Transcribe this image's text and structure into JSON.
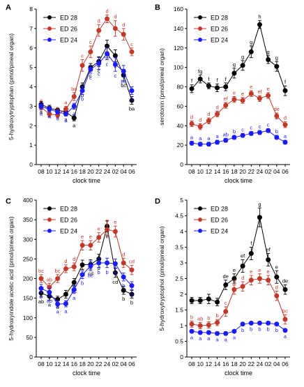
{
  "colors": {
    "ED 28": "#000000",
    "ED 26": "#c0392b",
    "ED 24": "#1a1aff",
    "axis": "#000000"
  },
  "chart_data": [
    {
      "panel": "A",
      "type": "line",
      "x": [
        "08",
        "10",
        "12",
        "14",
        "16",
        "18",
        "20",
        "22",
        "24",
        "02",
        "04",
        "06"
      ],
      "xlabel": "clock time",
      "ylabel": "5-hydroxytryptophan (pmol/pineal organ)",
      "ylim": [
        0,
        8
      ],
      "yticks": [
        0,
        1,
        2,
        3,
        4,
        5,
        6,
        7,
        8
      ],
      "legend_position": "top-left",
      "series": [
        {
          "name": "ED 28",
          "values": [
            3.1,
            2.9,
            2.8,
            2.7,
            2.4,
            4.0,
            5.0,
            5.3,
            6.1,
            5.6,
            4.6,
            3.3
          ],
          "errors": [
            0.15,
            0.15,
            0.1,
            0.15,
            0.15,
            0.2,
            0.2,
            0.25,
            0.3,
            0.3,
            0.3,
            0.2
          ],
          "labels": [
            "a",
            "a",
            "a",
            "a",
            "a",
            "b",
            "c",
            "c",
            "cd",
            "c",
            "bc",
            "ba"
          ],
          "label_pos": "below"
        },
        {
          "name": "ED 26",
          "values": [
            2.95,
            2.6,
            2.55,
            2.85,
            3.5,
            5.1,
            5.8,
            6.9,
            7.5,
            7.0,
            6.7,
            5.8
          ],
          "errors": [
            0.15,
            0.15,
            0.15,
            0.15,
            0.2,
            0.3,
            0.3,
            0.3,
            0.2,
            0.4,
            0.3,
            0.2
          ],
          "labels": [
            "a",
            "a",
            "a",
            "a",
            "ba",
            "c",
            "c",
            "d",
            "d",
            "d",
            "d",
            "c"
          ],
          "label_pos": "above"
        },
        {
          "name": "ED 24",
          "values": [
            3.0,
            2.85,
            2.7,
            2.6,
            3.0,
            3.8,
            4.9,
            5.2,
            5.7,
            5.15,
            4.8,
            3.8
          ],
          "errors": [
            0.15,
            0.15,
            0.1,
            0.1,
            0.15,
            0.2,
            0.2,
            0.3,
            0.3,
            0.35,
            0.3,
            0.2
          ],
          "labels": [
            "a",
            "a",
            "a",
            "a",
            "a",
            "b",
            "c",
            "c",
            "c",
            "c",
            "bc",
            "b"
          ],
          "label_pos": "below"
        }
      ]
    },
    {
      "panel": "B",
      "type": "line",
      "x": [
        "08",
        "10",
        "12",
        "14",
        "16",
        "18",
        "20",
        "22",
        "24",
        "02",
        "04",
        "06"
      ],
      "xlabel": "clock time",
      "ylabel": "serotonin (pmol/pineal organ)",
      "ylim": [
        0,
        160
      ],
      "yticks": [
        0,
        20,
        40,
        60,
        80,
        100,
        120,
        140,
        160
      ],
      "legend_position": "top-left",
      "series": [
        {
          "name": "ED 28",
          "values": [
            78,
            88,
            81,
            79,
            80,
            94,
            102,
            116,
            144,
            108,
            101,
            76
          ],
          "errors": [
            4,
            4,
            3,
            4,
            4,
            5,
            5,
            6,
            4,
            4,
            5,
            5
          ],
          "labels": [
            "f",
            "fg",
            "f",
            "f",
            "f",
            "g",
            "g",
            "g",
            "h",
            "g",
            "g",
            "f"
          ],
          "label_pos": "above"
        },
        {
          "name": "ED 26",
          "values": [
            42,
            39,
            45,
            52,
            61,
            67,
            66,
            73,
            68,
            71,
            50,
            41
          ],
          "errors": [
            3,
            3,
            3,
            3,
            3,
            3,
            3,
            3,
            3,
            3,
            3,
            3
          ],
          "labels": [
            "d",
            "d",
            "d",
            "d",
            "ef",
            "e",
            "e",
            "e",
            "ef",
            "e",
            "de",
            "d"
          ],
          "label_pos": "above"
        },
        {
          "name": "ED 24",
          "values": [
            22,
            21,
            21,
            23,
            25,
            28,
            30,
            32,
            33,
            35,
            28,
            23
          ],
          "errors": [
            2,
            2,
            2,
            2,
            2,
            2,
            2,
            2,
            2,
            2,
            2,
            2
          ],
          "labels": [
            "a",
            "a",
            "a",
            "a",
            "ab",
            "b",
            "c",
            "c",
            "c",
            "c",
            "b",
            "a"
          ],
          "label_pos": "above"
        }
      ]
    },
    {
      "panel": "C",
      "type": "line",
      "x": [
        "08",
        "10",
        "12",
        "14",
        "16",
        "18",
        "20",
        "22",
        "24",
        "02",
        "04",
        "06"
      ],
      "xlabel": "clock time",
      "ylabel": "5-hydroxyindole acetic acid (pmol/pineal organ)",
      "ylim": [
        0,
        400
      ],
      "yticks": [
        0,
        50,
        100,
        150,
        200,
        250,
        300,
        350,
        400
      ],
      "legend_position": "top-left",
      "series": [
        {
          "name": "ED 28",
          "values": [
            163,
            155,
            147,
            160,
            190,
            235,
            236,
            250,
            333,
            215,
            170,
            160
          ],
          "errors": [
            10,
            10,
            8,
            10,
            10,
            12,
            12,
            12,
            14,
            12,
            10,
            10
          ],
          "labels": [
            "ab",
            "a",
            "a",
            "a",
            "bc",
            "cd",
            "cd",
            "d",
            "e",
            "cd",
            "b",
            "b"
          ],
          "label_pos": "below"
        },
        {
          "name": "ED 26",
          "values": [
            200,
            178,
            200,
            225,
            230,
            285,
            285,
            305,
            325,
            320,
            240,
            222
          ],
          "errors": [
            10,
            10,
            10,
            10,
            10,
            12,
            12,
            12,
            14,
            14,
            12,
            12
          ],
          "labels": [
            "bc",
            "ab",
            "bc",
            "d",
            "d",
            "e",
            "e",
            "e",
            "e",
            "e",
            "d",
            "cd"
          ],
          "label_pos": "above"
        },
        {
          "name": "ED 24",
          "values": [
            175,
            165,
            135,
            136,
            172,
            210,
            232,
            240,
            240,
            238,
            204,
            182
          ],
          "errors": [
            10,
            10,
            8,
            8,
            10,
            10,
            12,
            12,
            12,
            12,
            10,
            10
          ],
          "labels": [
            "b",
            "ab",
            "a",
            "a",
            "a",
            "b",
            "bc",
            "b",
            "b",
            "b",
            "b",
            "b"
          ],
          "label_pos": "below"
        }
      ]
    },
    {
      "panel": "D",
      "type": "line",
      "x": [
        "08",
        "10",
        "12",
        "14",
        "16",
        "18",
        "20",
        "22",
        "24",
        "02",
        "04",
        "06"
      ],
      "xlabel": "clock time",
      "ylabel": "5-hydroxytryptophol (pmol/pineal organ)",
      "ylim": [
        0,
        5
      ],
      "yticks": [
        0,
        0.5,
        1,
        1.5,
        2,
        2.5,
        3,
        3.5,
        4,
        4.5,
        5
      ],
      "legend_position": "top-left",
      "series": [
        {
          "name": "ED 28",
          "values": [
            1.8,
            1.8,
            1.85,
            1.75,
            2.3,
            2.5,
            2.9,
            3.3,
            4.45,
            3.1,
            2.55,
            2.15
          ],
          "errors": [
            0.1,
            0.1,
            0.15,
            0.12,
            0.15,
            0.15,
            0.2,
            0.2,
            0.3,
            0.2,
            0.2,
            0.15
          ],
          "labels": [
            "",
            "",
            "",
            "",
            "de",
            "e",
            "ef",
            "f",
            "g",
            "ef",
            "e",
            "de"
          ],
          "label_pos": "above"
        },
        {
          "name": "ED 26",
          "values": [
            1.05,
            1.0,
            1.02,
            1.1,
            1.45,
            2.15,
            2.25,
            2.45,
            2.5,
            2.45,
            1.95,
            1.2
          ],
          "errors": [
            0.1,
            0.1,
            0.1,
            0.1,
            0.15,
            0.15,
            0.15,
            0.15,
            0.15,
            0.15,
            0.15,
            0.15
          ],
          "labels": [
            "b",
            "ab",
            "b",
            "b",
            "c",
            "d",
            "d",
            "e",
            "e",
            "e",
            "d",
            "bc"
          ],
          "label_pos": "above"
        },
        {
          "name": "ED 24",
          "values": [
            0.82,
            0.78,
            0.78,
            0.75,
            0.75,
            0.82,
            1.05,
            1.08,
            1.08,
            1.08,
            1.05,
            0.85
          ],
          "errors": [
            0.05,
            0.05,
            0.05,
            0.05,
            0.05,
            0.05,
            0.05,
            0.05,
            0.05,
            0.05,
            0.05,
            0.05
          ],
          "labels": [
            "a",
            "a",
            "a",
            "a",
            "a",
            "a",
            "b",
            "b",
            "b",
            "b",
            "b",
            "a"
          ],
          "label_pos": "below"
        }
      ]
    }
  ]
}
